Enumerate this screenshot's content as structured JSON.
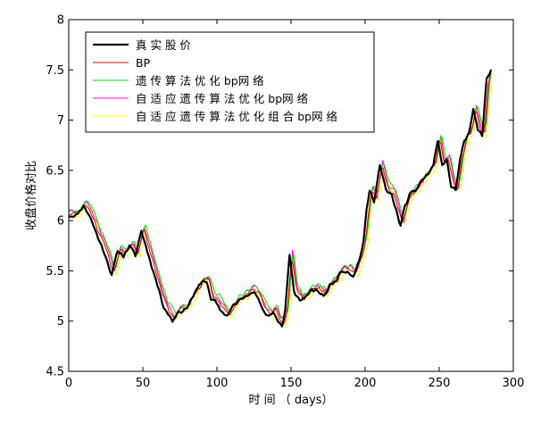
{
  "chart_data": {
    "type": "line",
    "title": "",
    "xlabel": "时 间 （ days）",
    "ylabel": "收盘价格对比",
    "xlim": [
      0,
      300
    ],
    "ylim": [
      4.5,
      8
    ],
    "xticks": [
      0,
      50,
      100,
      150,
      200,
      250,
      300
    ],
    "yticks": [
      4.5,
      5,
      5.5,
      6,
      6.5,
      7,
      7.5,
      8
    ],
    "xtick_labels": [
      "0",
      "50",
      "100",
      "150",
      "200",
      "250",
      "300"
    ],
    "ytick_labels": [
      "4.5",
      "5",
      "5.5",
      "6",
      "6.5",
      "7",
      "7.5",
      "8"
    ],
    "grid": false,
    "legend": "top-left",
    "actual_keypoints": {
      "x": [
        0,
        5,
        10,
        14,
        18,
        22,
        25,
        29,
        33,
        37,
        41,
        45,
        49,
        52,
        56,
        60,
        64,
        68,
        70,
        74,
        78,
        82,
        86,
        90,
        93,
        96,
        99,
        103,
        107,
        111,
        115,
        119,
        123,
        127,
        131,
        135,
        138,
        141,
        144,
        146,
        149,
        152,
        156,
        160,
        164,
        168,
        172,
        176,
        180,
        184,
        188,
        192,
        196,
        199,
        201,
        203,
        206,
        210,
        214,
        218,
        221,
        224,
        227,
        230,
        234,
        238,
        242,
        246,
        249,
        252,
        255,
        258,
        261,
        264,
        267,
        270,
        273,
        276,
        279,
        282,
        285
      ],
      "y": [
        6.05,
        6.05,
        6.15,
        6.05,
        5.9,
        5.75,
        5.65,
        5.45,
        5.7,
        5.65,
        5.75,
        5.65,
        5.9,
        5.75,
        5.55,
        5.35,
        5.15,
        5.05,
        5.0,
        5.1,
        5.1,
        5.2,
        5.3,
        5.4,
        5.4,
        5.2,
        5.2,
        5.1,
        5.05,
        5.15,
        5.2,
        5.25,
        5.3,
        5.25,
        5.1,
        5.05,
        5.1,
        5.0,
        4.95,
        5.1,
        5.65,
        5.3,
        5.2,
        5.25,
        5.3,
        5.3,
        5.25,
        5.35,
        5.4,
        5.5,
        5.5,
        5.45,
        5.6,
        5.8,
        6.1,
        6.3,
        6.2,
        6.55,
        6.3,
        6.25,
        6.1,
        5.95,
        6.15,
        6.25,
        6.3,
        6.4,
        6.45,
        6.55,
        6.8,
        6.55,
        6.6,
        6.35,
        6.3,
        6.6,
        6.8,
        6.85,
        7.1,
        6.9,
        6.85,
        7.4,
        7.5
      ]
    },
    "series": [
      {
        "name": "真 实 股 价",
        "color": "#000000",
        "line_width": 2.2,
        "lag": 0,
        "bias": 0,
        "noise": 0.024,
        "seed": 11
      },
      {
        "name": "BP",
        "color": "#dd0000",
        "line_width": 1,
        "lag": 1.5,
        "bias": 0.02,
        "noise": 0.03,
        "seed": 23
      },
      {
        "name": "遗 传 算 法 优 化 bp网 络",
        "color": "#00e000",
        "line_width": 1,
        "lag": 2.5,
        "bias": 0.06,
        "noise": 0.03,
        "seed": 37
      },
      {
        "name": "自 适 应 遗 传 算 法 优 化 bp网 络",
        "color": "#ff00ff",
        "line_width": 1,
        "lag": 2.0,
        "bias": 0.04,
        "noise": 0.03,
        "seed": 51
      },
      {
        "name": "自 适 应 遗 传 算 法 优 化 组 合 bp网 络",
        "color": "#ffff00",
        "line_width": 1,
        "lag": 3.0,
        "bias": 0.0,
        "noise": 0.03,
        "seed": 67
      }
    ]
  }
}
